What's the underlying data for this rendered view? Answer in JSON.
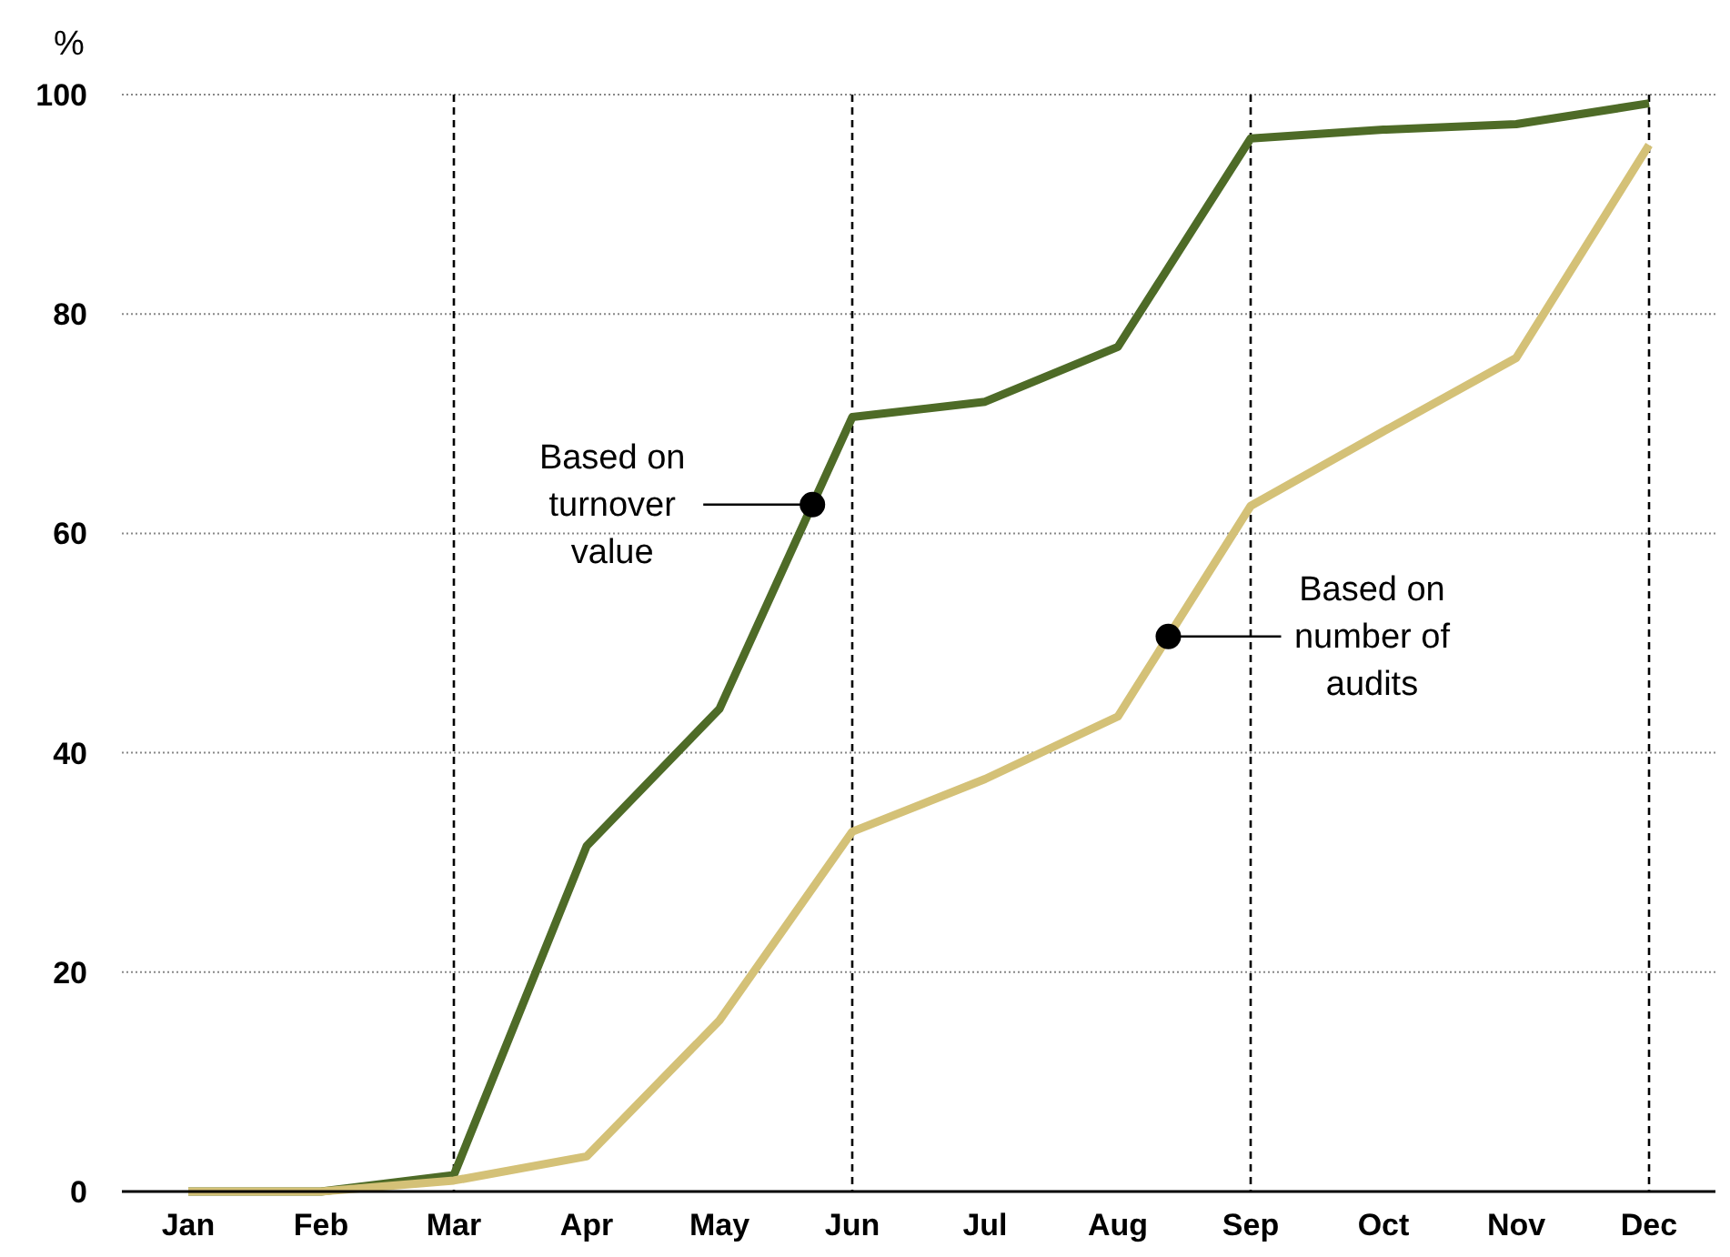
{
  "chart_data": {
    "type": "line",
    "ylabel": "%",
    "categories": [
      "Jan",
      "Feb",
      "Mar",
      "Apr",
      "May",
      "Jun",
      "Jul",
      "Aug",
      "Sep",
      "Oct",
      "Nov",
      "Dec"
    ],
    "series": [
      {
        "name": "Based on turnover value",
        "color": "#4e6b27",
        "values": [
          0,
          0,
          1.5,
          31.5,
          44,
          70.6,
          72,
          77,
          96,
          96.8,
          97.3,
          99.2
        ]
      },
      {
        "name": "Based on number of audits",
        "color": "#d4c177",
        "values": [
          0,
          0,
          1,
          3.2,
          15.6,
          32.8,
          37.6,
          43.3,
          62.5,
          69.3,
          76,
          95.4
        ]
      }
    ],
    "ylim": [
      0,
      100
    ],
    "yticks": [
      0,
      20,
      40,
      60,
      80,
      100
    ],
    "grid": "y",
    "legend": false,
    "marker": "none",
    "line_style": "solid",
    "ref_lines": [
      {
        "axis": "x",
        "value": "Mar",
        "color": "#000000",
        "line_style": "dashed"
      },
      {
        "axis": "x",
        "value": "Jun",
        "color": "#000000",
        "line_style": "dashed"
      },
      {
        "axis": "x",
        "value": "Sep",
        "color": "#000000",
        "line_style": "dashed"
      },
      {
        "axis": "x",
        "value": "Dec",
        "color": "#000000",
        "line_style": "dashed"
      }
    ]
  }
}
